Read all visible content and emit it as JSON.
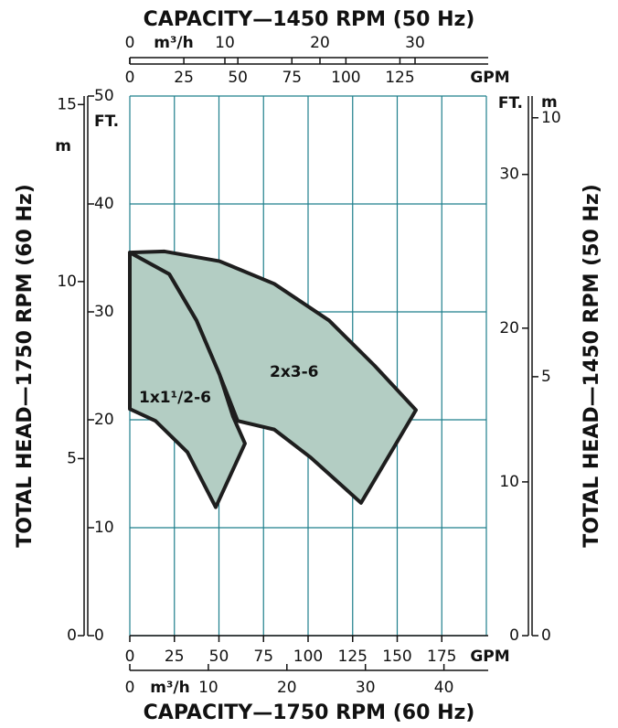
{
  "chart_data": {
    "type": "area",
    "title_top": "CAPACITY—1450 RPM (50 Hz)",
    "title_bottom": "CAPACITY—1750 RPM (60 Hz)",
    "title_left": "TOTAL HEAD—1750 RPM (60 Hz)",
    "title_right": "TOTAL HEAD—1450 RPM (50 Hz)",
    "x_unit": "GPM",
    "xlim": [
      0,
      200
    ],
    "xticks": [
      0,
      25,
      50,
      75,
      100,
      125,
      150,
      175
    ],
    "x_unit_m3h": "m³/h",
    "xlim_m3h": [
      0,
      45.4
    ],
    "xticks_m3h": [
      0,
      10,
      20,
      30,
      40
    ],
    "x2_unit": "GPM",
    "x2lim": [
      0,
      165
    ],
    "x2ticks": [
      0,
      25,
      50,
      75,
      100,
      125
    ],
    "x2_unit_m3h": "m³/h",
    "x2lim_m3h": [
      0,
      37.5
    ],
    "x2ticks_m3h": [
      0,
      10,
      20,
      30
    ],
    "y_unit": "FT.",
    "ylim": [
      0,
      50
    ],
    "yticks": [
      0,
      10,
      20,
      30,
      40,
      50
    ],
    "y_unit_m": "m",
    "ylim_m": [
      0,
      15.24
    ],
    "yticks_m": [
      0,
      5,
      10,
      15
    ],
    "y2_unit": "FT.",
    "y2lim": [
      0,
      35.1
    ],
    "y2ticks": [
      0,
      10,
      20,
      30
    ],
    "y2_unit_m": "m",
    "y2lim_m": [
      0,
      10.42
    ],
    "y2ticks_m": [
      0,
      5,
      10
    ],
    "grid": true,
    "grid_color": "#1f7f8c",
    "fill": "#b3cdc3",
    "outline": "#1e1e1e",
    "series": [
      {
        "name": "2x3-6",
        "x": [
          0,
          19.5,
          50.3,
          81.0,
          111.8,
          137.4,
          160.5,
          129.7,
          101.5,
          81.0,
          60.5,
          50.3,
          37.4,
          22.1
        ],
        "values": [
          35.5,
          35.6,
          34.7,
          32.6,
          29.2,
          25.0,
          20.9,
          12.3,
          16.5,
          19.1,
          19.9,
          24.2,
          29.2,
          33.5
        ]
      },
      {
        "name": "1x1¹/2-6",
        "x": [
          0,
          14.4,
          32.3,
          48.2,
          64.6,
          57.9,
          50.3,
          37.4,
          22.1,
          0
        ],
        "values": [
          21.0,
          19.9,
          17.0,
          11.9,
          17.8,
          20.3,
          24.2,
          29.2,
          33.5,
          35.5
        ]
      }
    ]
  }
}
